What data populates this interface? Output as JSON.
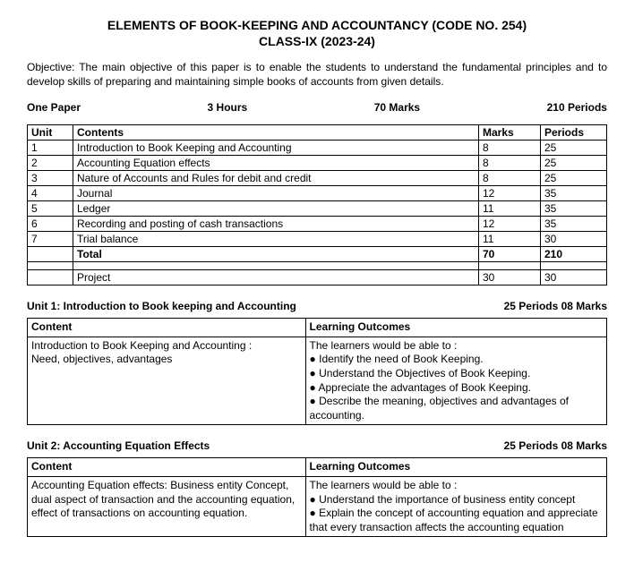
{
  "title": "ELEMENTS OF BOOK-KEEPING AND ACCOUNTANCY (CODE NO. 254)",
  "subtitle": "CLASS-IX (2023-24)",
  "objective": "Objective: The main objective of this paper is to enable the students to understand the fundamental principles and to develop skills of preparing and maintaining simple books of accounts from given details.",
  "header": {
    "paper": "One Paper",
    "hours": "3 Hours",
    "marks": "70 Marks",
    "periods": "210 Periods"
  },
  "main_table": {
    "columns": [
      "Unit",
      "Contents",
      "Marks",
      "Periods"
    ],
    "rows": [
      [
        "1",
        "Introduction to Book Keeping and Accounting",
        "8",
        "25"
      ],
      [
        "2",
        "Accounting Equation effects",
        "8",
        "25"
      ],
      [
        "3",
        "Nature of Accounts and Rules for debit and credit",
        "8",
        "25"
      ],
      [
        "4",
        "Journal",
        "12",
        "35"
      ],
      [
        "5",
        "Ledger",
        "11",
        "35"
      ],
      [
        "6",
        "Recording and posting of cash transactions",
        "12",
        "35"
      ],
      [
        "7",
        "Trial balance",
        "11",
        "30"
      ]
    ],
    "total": [
      "",
      "Total",
      "70",
      "210"
    ],
    "project": [
      "",
      "Project",
      "30",
      "30"
    ]
  },
  "unit1": {
    "heading": "Unit 1: Introduction to Book keeping and Accounting",
    "meta": "25 Periods 08 Marks",
    "col1": "Content",
    "col2": "Learning Outcomes",
    "content": "Introduction to Book Keeping and Accounting :\nNeed, objectives, advantages",
    "outcomes_intro": "The learners would be able to :",
    "outcomes": [
      "● Identify the need of Book Keeping.",
      "● Understand the Objectives of Book Keeping.",
      "● Appreciate the advantages of Book Keeping.",
      "● Describe the meaning, objectives and advantages of accounting."
    ]
  },
  "unit2": {
    "heading": "Unit 2: Accounting Equation Effects",
    "meta": "25 Periods 08 Marks",
    "col1": "Content",
    "col2": "Learning Outcomes",
    "content": "Accounting Equation effects: Business entity Concept, dual aspect of transaction and the accounting equation, effect of transactions on accounting equation.",
    "outcomes_intro": "The learners would be able to :",
    "outcomes": [
      "● Understand the importance of business entity concept",
      "● Explain the concept of accounting equation and appreciate that every transaction affects the accounting equation"
    ]
  }
}
